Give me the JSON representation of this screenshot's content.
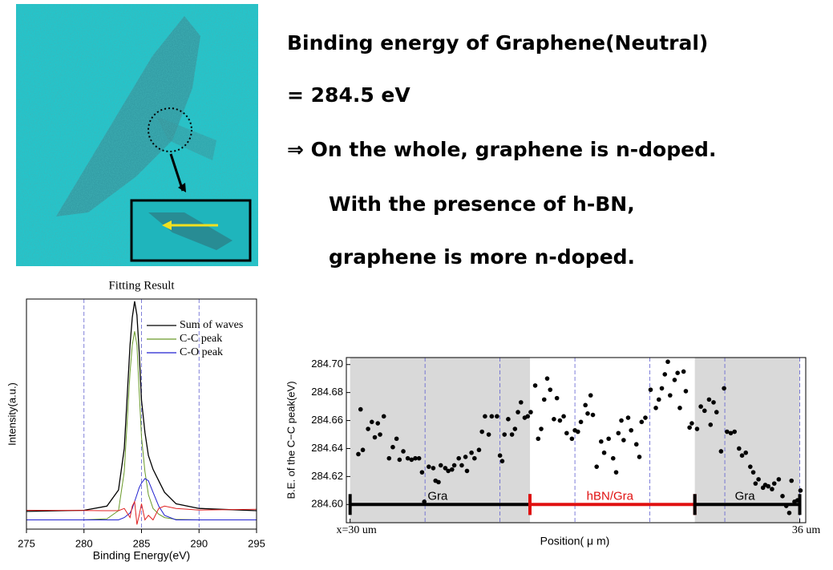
{
  "slide": {
    "lines": [
      "Binding energy of Graphene(Neutral)",
      "= 284.5 eV",
      "⇒ On the whole, graphene is n-doped.",
      "With the presence of h-BN,",
      "graphene is more n-doped."
    ]
  },
  "chart_data": [
    {
      "type": "line",
      "title": "Fitting Result",
      "x_label": "Binding Energy(eV)",
      "y_label": "Intensity(a.u.)",
      "x": [
        275,
        280,
        282,
        283,
        283.5,
        284,
        284.2,
        284.4,
        284.6,
        284.8,
        285,
        285.3,
        285.6,
        286,
        286.5,
        287,
        288,
        290,
        295
      ],
      "series": [
        {
          "name": "Sum of waves",
          "color": "#000000",
          "values": [
            7.7,
            8.2,
            10,
            17,
            35,
            80,
            92,
            99,
            93,
            77,
            56,
            42,
            32,
            26,
            21,
            16,
            11,
            9,
            8
          ]
        },
        {
          "name": "C-C peak",
          "color": "#6a9a2a",
          "values": [
            4,
            4,
            4.5,
            8,
            25,
            68,
            80,
            86,
            80,
            60,
            40,
            25,
            15,
            9,
            6.5,
            5,
            4.2,
            4,
            4
          ]
        },
        {
          "name": "C-O peak",
          "color": "#2020d0",
          "values": [
            4,
            4,
            4,
            4,
            5,
            7,
            9,
            12,
            15,
            18,
            20,
            22,
            21,
            16,
            10,
            6,
            4,
            4,
            4
          ]
        },
        {
          "color": "#e02020",
          "values": [
            8.2,
            8.1,
            8,
            8,
            9,
            5,
            10,
            12,
            2,
            6,
            11,
            4,
            6,
            4,
            9,
            10,
            9,
            8.3,
            8.6
          ]
        }
      ],
      "xlim": [
        275,
        295
      ],
      "xticks": [
        275,
        280,
        285,
        290,
        295
      ],
      "xgrid": [
        280,
        285,
        290
      ],
      "ylim": [
        0,
        100
      ]
    },
    {
      "type": "scatter",
      "x_label": "Position( μ m)",
      "y_label": "B.E. of the C−C peak(eV)",
      "color": "#000000",
      "x": [
        30.11,
        30.14,
        30.17,
        30.24,
        30.29,
        30.33,
        30.37,
        30.4,
        30.45,
        30.52,
        30.57,
        30.62,
        30.66,
        30.71,
        30.77,
        30.82,
        30.87,
        30.92,
        30.96,
        30.99,
        31.05,
        31.11,
        31.14,
        31.18,
        31.21,
        31.27,
        31.31,
        31.36,
        31.39,
        31.45,
        31.49,
        31.54,
        31.56,
        31.62,
        31.66,
        31.72,
        31.76,
        31.8,
        31.85,
        31.89,
        31.96,
        32.0,
        32.03,
        32.06,
        32.11,
        32.16,
        32.2,
        32.24,
        32.28,
        32.33,
        32.37,
        32.41,
        32.47,
        32.51,
        32.55,
        32.59,
        32.63,
        32.67,
        32.72,
        32.76,
        32.8,
        32.85,
        32.89,
        32.96,
        33.0,
        33.04,
        33.08,
        33.14,
        33.17,
        33.21,
        33.24,
        33.29,
        33.35,
        33.39,
        33.45,
        33.51,
        33.55,
        33.58,
        33.62,
        33.65,
        33.71,
        33.75,
        33.82,
        33.86,
        33.89,
        33.94,
        34.01,
        34.08,
        34.12,
        34.16,
        34.2,
        34.24,
        34.27,
        34.33,
        34.37,
        34.4,
        34.45,
        34.48,
        34.53,
        34.56,
        34.63,
        34.68,
        34.73,
        34.79,
        34.81,
        34.85,
        34.89,
        34.95,
        34.99,
        35.03,
        35.08,
        35.13,
        35.19,
        35.23,
        35.28,
        35.34,
        35.38,
        35.41,
        35.45,
        35.51,
        35.54,
        35.58,
        35.63,
        35.66,
        35.72,
        35.77,
        35.82,
        35.86,
        35.89,
        35.93,
        35.97,
        36.01
      ],
      "values": [
        284.636,
        284.668,
        284.639,
        284.654,
        284.659,
        284.648,
        284.658,
        284.65,
        284.663,
        284.633,
        284.641,
        284.647,
        284.632,
        284.638,
        284.633,
        284.632,
        284.633,
        284.633,
        284.623,
        284.602,
        284.627,
        284.626,
        284.617,
        284.616,
        284.628,
        284.626,
        284.624,
        284.625,
        284.628,
        284.633,
        284.628,
        284.634,
        284.624,
        284.637,
        284.633,
        284.639,
        284.652,
        284.663,
        284.65,
        284.663,
        284.663,
        284.635,
        284.631,
        284.65,
        284.661,
        284.65,
        284.654,
        284.666,
        284.673,
        284.662,
        284.663,
        284.666,
        284.685,
        284.647,
        284.654,
        284.675,
        284.69,
        284.682,
        284.661,
        284.676,
        284.66,
        284.663,
        284.651,
        284.647,
        284.653,
        284.652,
        284.659,
        284.671,
        284.665,
        284.678,
        284.664,
        284.627,
        284.645,
        284.637,
        284.647,
        284.633,
        284.623,
        284.651,
        284.66,
        284.646,
        284.662,
        284.653,
        284.643,
        284.634,
        284.659,
        284.662,
        284.682,
        284.669,
        284.675,
        284.683,
        284.693,
        284.702,
        284.678,
        284.689,
        284.694,
        284.669,
        284.695,
        284.681,
        284.655,
        284.658,
        284.654,
        284.67,
        284.667,
        284.675,
        284.657,
        284.673,
        284.666,
        284.638,
        284.683,
        284.652,
        284.651,
        284.652,
        284.64,
        284.635,
        284.637,
        284.627,
        284.623,
        284.615,
        284.618,
        284.612,
        284.614,
        284.613,
        284.611,
        284.615,
        284.618,
        284.606,
        284.599,
        284.594,
        284.617,
        284.602,
        284.603,
        284.61
      ],
      "xlim": [
        29.95,
        36.08
      ],
      "xticks": [
        {
          "value": 30,
          "label": "x=30 um"
        },
        {
          "value": 36,
          "label": "36 um"
        }
      ],
      "xgrid": [
        31,
        32,
        33,
        34,
        35,
        36
      ],
      "ylim": [
        284.587,
        284.705
      ],
      "yticks": [
        {
          "value": 284.6,
          "label": "284.60"
        },
        {
          "value": 284.62,
          "label": "284.62"
        },
        {
          "value": 284.64,
          "label": "284.64"
        },
        {
          "value": 284.66,
          "label": "284.66"
        },
        {
          "value": 284.68,
          "label": "284.68"
        },
        {
          "value": 284.7,
          "label": "284.70"
        }
      ],
      "segments": [
        {
          "label": "Gra",
          "start": 30,
          "end": 32.4,
          "color": "#000000",
          "shaded": true
        },
        {
          "label": "hBN/Gra",
          "start": 32.4,
          "end": 34.6,
          "color": "#e01010",
          "shaded": false
        },
        {
          "label": "Gra",
          "start": 34.6,
          "end": 36,
          "color": "#000000",
          "shaded": true
        }
      ]
    }
  ]
}
